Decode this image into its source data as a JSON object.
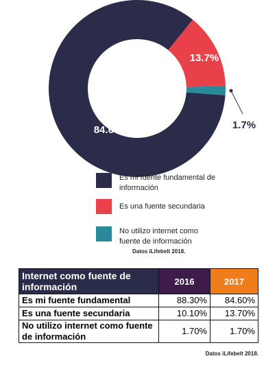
{
  "chart_data": {
    "type": "pie",
    "donut": true,
    "categories": [
      "Es mi fuente fundamental de información",
      "Es una fuente secundaria",
      "No utilizo internet como fuente de información"
    ],
    "values": [
      84.6,
      13.7,
      1.7
    ],
    "value_labels": [
      "84.6%",
      "13.7%",
      "1.7%"
    ],
    "colors": [
      "#2b2c4a",
      "#e8414a",
      "#2a8a9a"
    ],
    "source": "Datos iLifebelt 2018."
  },
  "table": {
    "header": [
      "Internet como fuente de información",
      "2016",
      "2017"
    ],
    "rows": [
      [
        "Es mi fuente fundamental",
        "88.30%",
        "84.60%"
      ],
      [
        "Es una fuente secundaria",
        "10.10%",
        "13.70%"
      ],
      [
        "No utilizo internet como fuente de información",
        "1.70%",
        "1.70%"
      ]
    ],
    "source": "Datos iLifebelt 2018."
  }
}
